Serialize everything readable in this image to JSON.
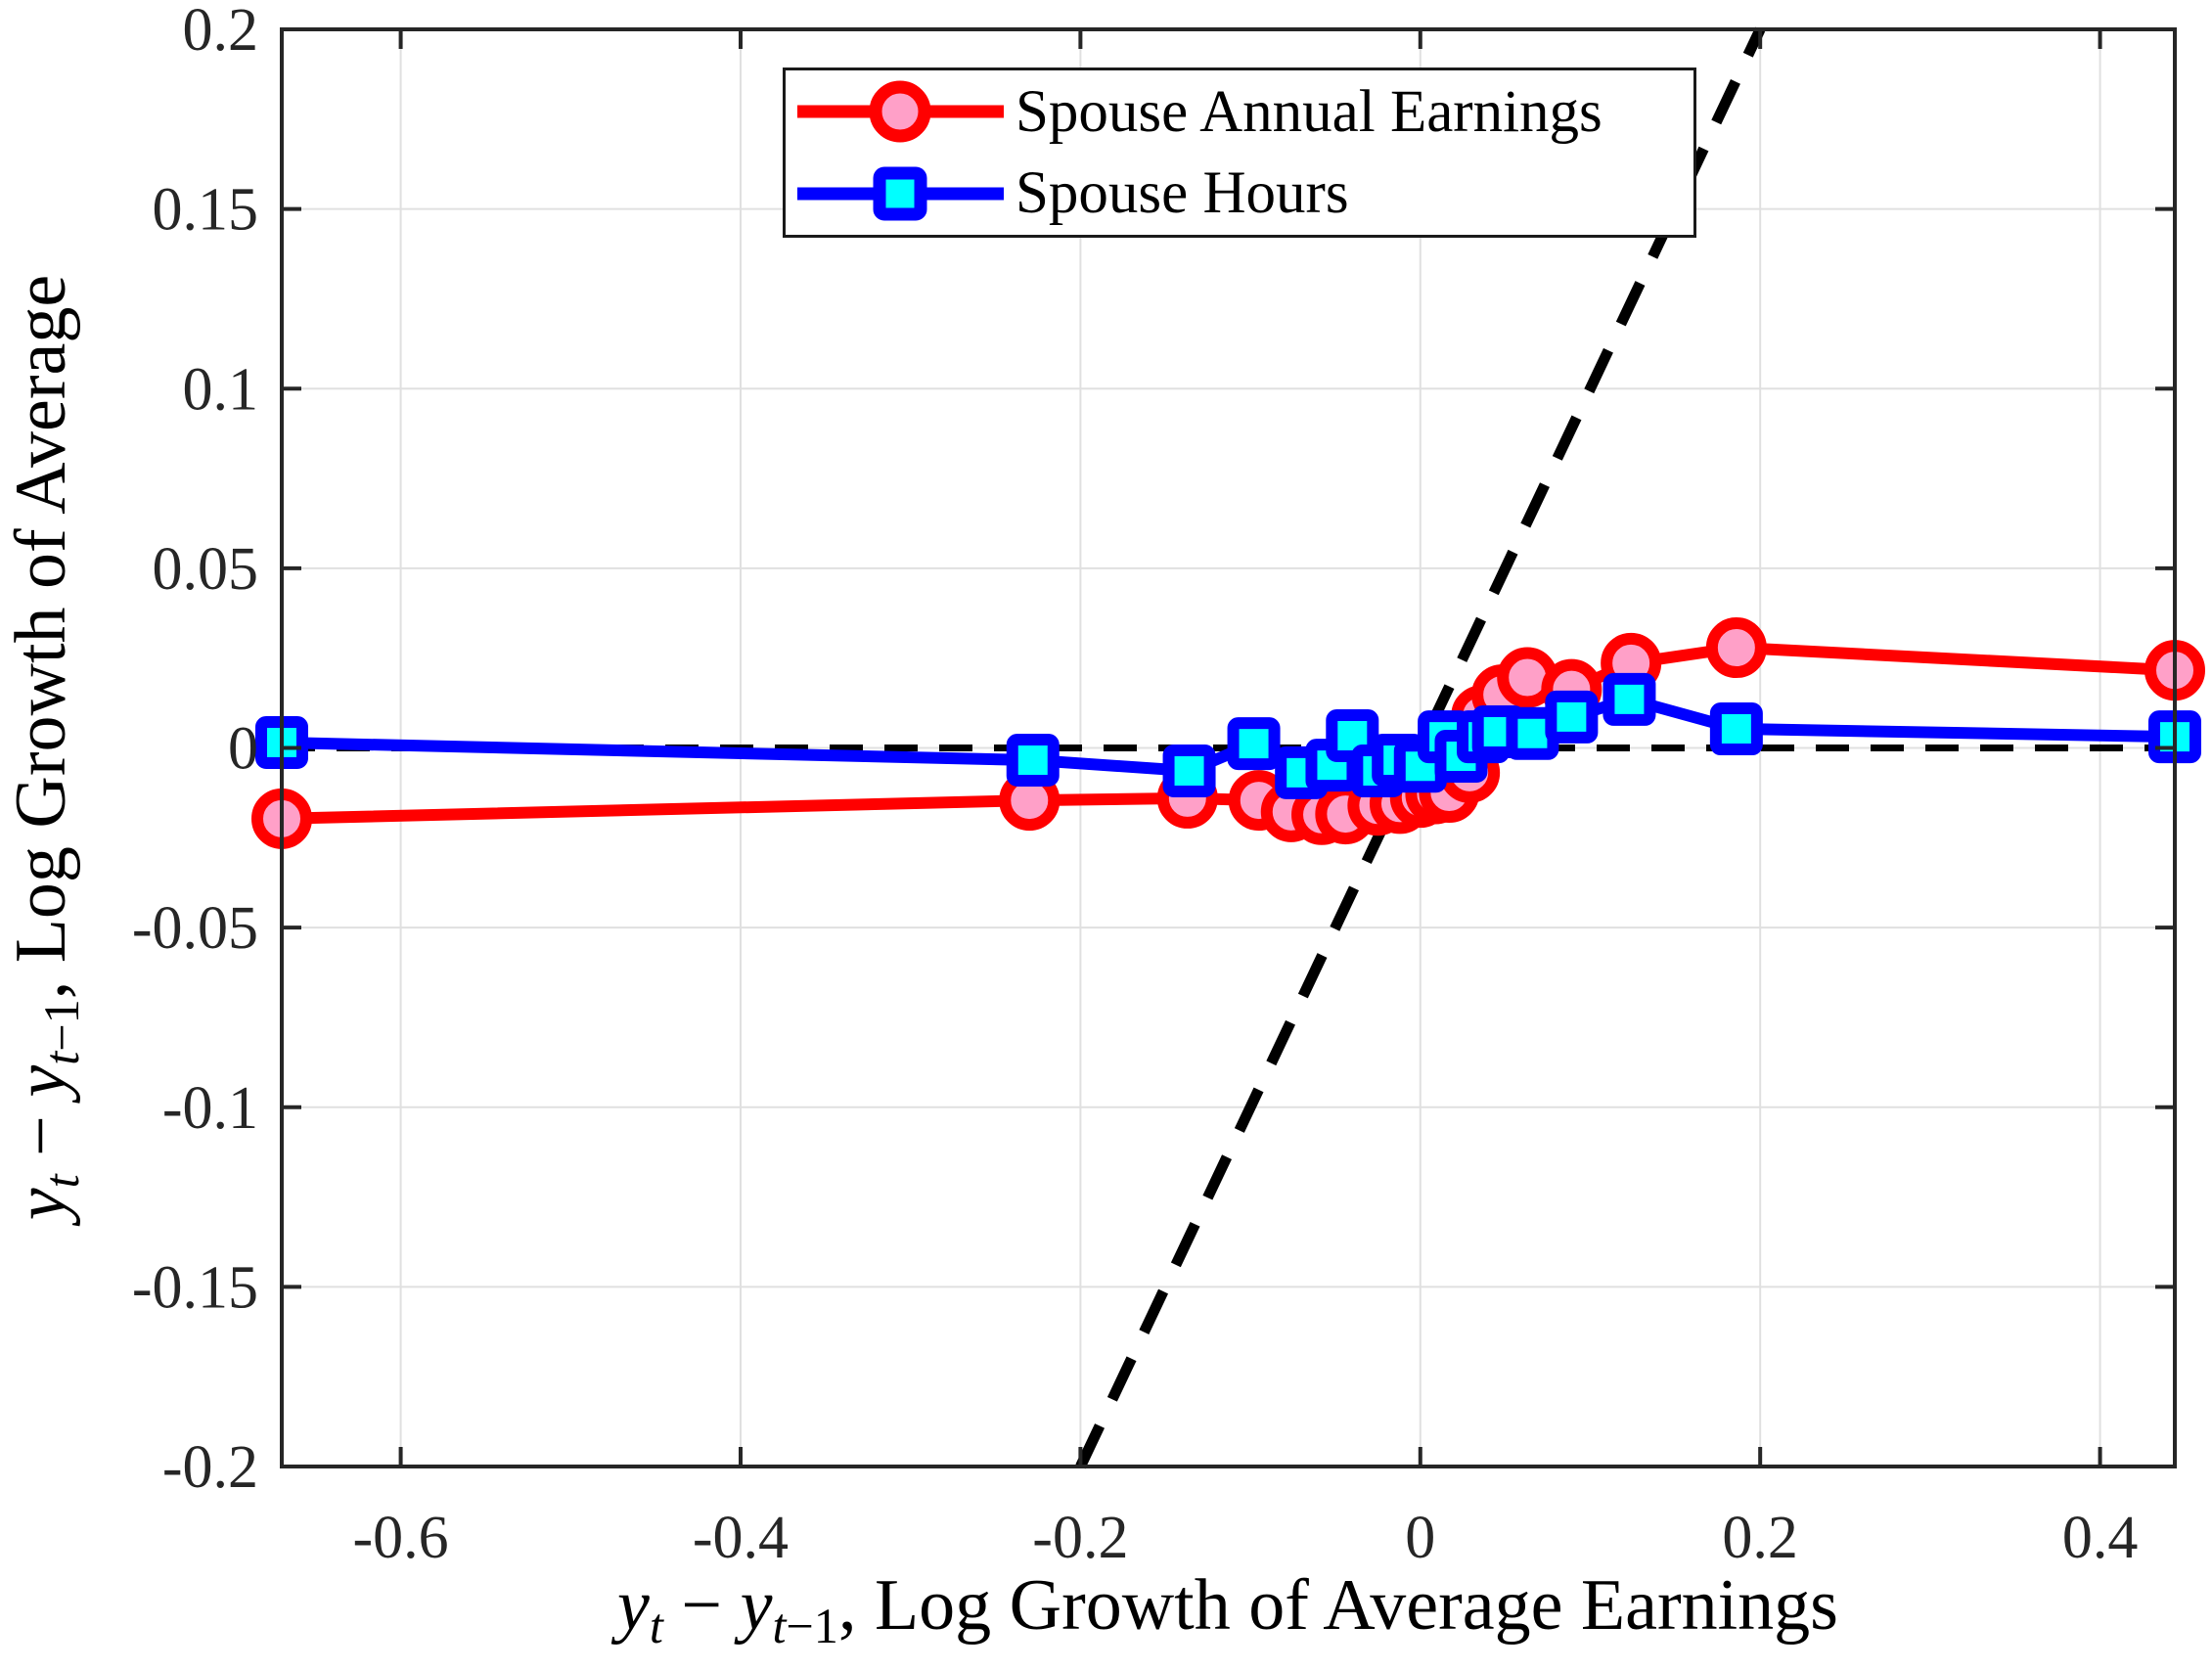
{
  "figure": {
    "background": "#FFFFFF",
    "axes_color": "#262626",
    "grid_color": "#E0E0E0"
  },
  "chart_data": {
    "type": "line",
    "title": "",
    "grid": true,
    "xlim": [
      -0.67,
      0.444
    ],
    "ylim": [
      -0.2,
      0.2
    ],
    "x_ticks": [
      -0.6,
      -0.4,
      -0.2,
      0,
      0.2,
      0.4
    ],
    "x_tick_labels": [
      "-0.6",
      "-0.4",
      "-0.2",
      "0",
      "0.2",
      "0.4"
    ],
    "y_ticks": [
      0.2,
      0.15,
      0.1,
      0.05,
      0,
      -0.05,
      -0.1,
      -0.15,
      -0.2
    ],
    "y_tick_labels": [
      "0.2",
      "0.15",
      "0.1",
      "0.05",
      "0",
      "-0.05",
      "-0.1",
      "-0.15",
      "-0.2"
    ],
    "xlabel_segments": [
      {
        "text": "y",
        "italic": true
      },
      {
        "text": "t",
        "italic": true,
        "sub": true
      },
      {
        "text": " − ",
        "italic": false
      },
      {
        "text": "y",
        "italic": true
      },
      {
        "text": "t",
        "italic": true,
        "sub": true
      },
      {
        "text": "−1",
        "italic": false,
        "sub": true
      },
      {
        "text": ", Log Growth of Average Earnings",
        "italic": false
      }
    ],
    "ylabel_segments": [
      {
        "text": "y",
        "italic": true
      },
      {
        "text": "t",
        "italic": true,
        "sub": true
      },
      {
        "text": " − ",
        "italic": false
      },
      {
        "text": "y",
        "italic": true
      },
      {
        "text": "t",
        "italic": true,
        "sub": true
      },
      {
        "text": "−1",
        "italic": false,
        "sub": true
      },
      {
        "text": ", Log Growth of Average",
        "italic": false
      }
    ],
    "reference_lines": [
      {
        "name": "zero-line",
        "kind": "horizontal",
        "y": 0,
        "style": "dashed",
        "color": "#000000"
      },
      {
        "name": "45-degree-line",
        "kind": "identity",
        "slope": 1,
        "intercept": 0,
        "style": "dashed",
        "color": "#000000"
      }
    ],
    "legend": {
      "position": "top-center",
      "border": true
    },
    "series": [
      {
        "name": "Spouse Annual Earnings",
        "color": "#FF0000",
        "marker": "circle",
        "marker_fill": "#FFA0C8",
        "points": [
          [
            -0.67,
            -0.0197
          ],
          [
            -0.23,
            -0.0146
          ],
          [
            -0.137,
            -0.014
          ],
          [
            -0.095,
            -0.0146
          ],
          [
            -0.076,
            -0.0178
          ],
          [
            -0.058,
            -0.0186
          ],
          [
            -0.044,
            -0.0184
          ],
          [
            -0.025,
            -0.016
          ],
          [
            -0.012,
            -0.0155
          ],
          [
            0.0,
            -0.0138
          ],
          [
            0.009,
            -0.0128
          ],
          [
            0.017,
            -0.0124
          ],
          [
            0.029,
            -0.0069
          ],
          [
            0.036,
            0.009
          ],
          [
            0.048,
            0.0148
          ],
          [
            0.063,
            0.0196
          ],
          [
            0.089,
            0.0163
          ],
          [
            0.124,
            0.0236
          ],
          [
            0.186,
            0.0279
          ],
          [
            0.444,
            0.0216
          ]
        ]
      },
      {
        "name": "Spouse Hours",
        "color": "#0000FF",
        "marker": "square",
        "marker_fill": "#00FFFF",
        "points": [
          [
            -0.67,
            0.0015
          ],
          [
            -0.228,
            -0.0034
          ],
          [
            -0.136,
            -0.0064
          ],
          [
            -0.098,
            0.0012
          ],
          [
            -0.07,
            -0.0069
          ],
          [
            -0.052,
            -0.0048
          ],
          [
            -0.04,
            0.0034
          ],
          [
            -0.025,
            -0.0064
          ],
          [
            -0.013,
            -0.0034
          ],
          [
            0.0,
            -0.0051
          ],
          [
            0.014,
            0.0031
          ],
          [
            0.024,
            -0.0023
          ],
          [
            0.037,
            0.0031
          ],
          [
            0.046,
            0.0045
          ],
          [
            0.066,
            0.004
          ],
          [
            0.089,
            0.0086
          ],
          [
            0.123,
            0.0135
          ],
          [
            0.186,
            0.0053
          ],
          [
            0.444,
            0.0031
          ]
        ]
      }
    ]
  }
}
